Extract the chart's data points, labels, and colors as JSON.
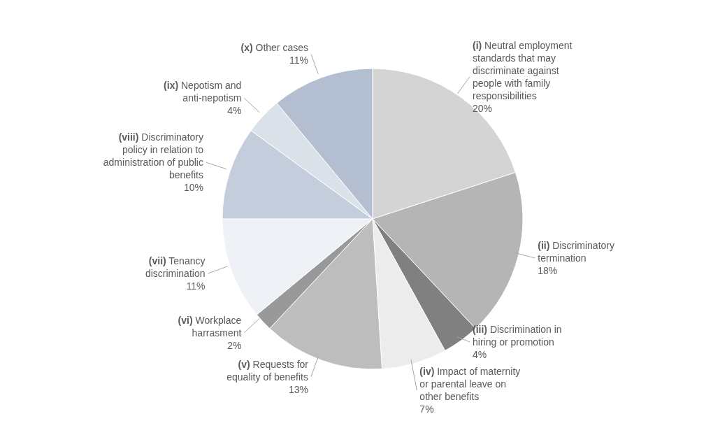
{
  "chart_data": {
    "type": "pie",
    "categories": [
      "(i) Neutral employment standards that may discriminate against people with family responsibilities",
      "(ii) Discriminatory termination",
      "(iii) Discrimination in hiring or promotion",
      "(iv) Impact of maternity or parental leave on other benefits",
      "(v) Requests for equality of benefits",
      "(vi) Workplace harrasment",
      "(vii) Tenancy discrimination",
      "(viii) Discriminatory policy in relation to administration of public benefits",
      "(ix) Nepotism and anti-nepotism",
      "(x) Other cases"
    ],
    "values": [
      20,
      18,
      4,
      7,
      13,
      2,
      11,
      10,
      4,
      11
    ],
    "value_labels": [
      "20%",
      "18%",
      "4%",
      "7%",
      "13%",
      "2%",
      "11%",
      "10%",
      "4%",
      "11%"
    ],
    "colors": [
      "#d4d4d4",
      "#b5b5b5",
      "#808080",
      "#ececec",
      "#bdbdbd",
      "#999999",
      "#eef1f5",
      "#c3cddb",
      "#dbe1e9",
      "#b3bfd1"
    ]
  }
}
